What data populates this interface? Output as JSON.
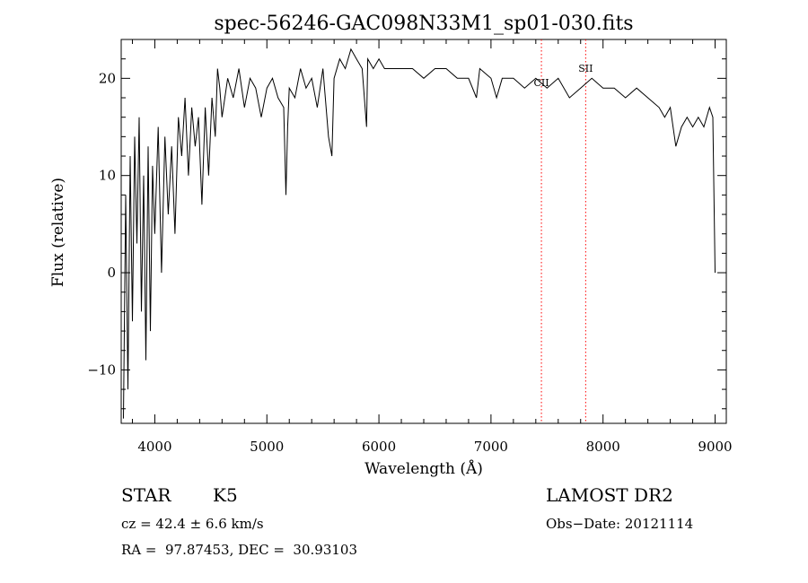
{
  "chart_data": {
    "type": "line",
    "title": "spec-56246-GAC098N33M1_sp01-030.fits",
    "xlabel": "Wavelength (Å)",
    "ylabel": "Flux (relative)",
    "xlim": [
      3700,
      9100
    ],
    "ylim": [
      -15.5,
      24
    ],
    "xticks": [
      4000,
      5000,
      6000,
      7000,
      8000,
      9000
    ],
    "xtick_labels": [
      "4000",
      "5000",
      "6000",
      "7000",
      "8000",
      "9000"
    ],
    "yticks": [
      -10,
      0,
      10,
      20
    ],
    "ytick_labels": [
      "−10",
      "0",
      "10",
      "20"
    ],
    "grid": false,
    "series": [
      {
        "color": "#000000",
        "x": [
          3720,
          3740,
          3760,
          3780,
          3800,
          3820,
          3840,
          3860,
          3880,
          3900,
          3920,
          3940,
          3960,
          3980,
          4000,
          4030,
          4060,
          4090,
          4120,
          4150,
          4180,
          4210,
          4240,
          4270,
          4300,
          4330,
          4360,
          4390,
          4420,
          4450,
          4480,
          4510,
          4540,
          4560,
          4580,
          4600,
          4650,
          4700,
          4750,
          4800,
          4850,
          4900,
          4950,
          5000,
          5050,
          5100,
          5150,
          5170,
          5185,
          5200,
          5250,
          5300,
          5350,
          5400,
          5450,
          5500,
          5550,
          5580,
          5600,
          5650,
          5700,
          5750,
          5800,
          5850,
          5890,
          5900,
          5950,
          6000,
          6050,
          6100,
          6200,
          6300,
          6400,
          6500,
          6600,
          6700,
          6800,
          6870,
          6900,
          7000,
          7050,
          7100,
          7200,
          7300,
          7400,
          7500,
          7600,
          7700,
          7800,
          7900,
          8000,
          8100,
          8200,
          8300,
          8400,
          8500,
          8550,
          8600,
          8650,
          8700,
          8750,
          8800,
          8850,
          8900,
          8950,
          8980,
          9000
        ],
        "y": [
          -15,
          8,
          -12,
          12,
          -5,
          14,
          3,
          16,
          -4,
          10,
          -9,
          13,
          -6,
          11,
          4,
          15,
          0,
          14,
          6,
          13,
          4,
          16,
          12,
          18,
          10,
          17,
          13,
          16,
          7,
          17,
          10,
          18,
          14,
          21,
          19,
          16,
          20,
          18,
          21,
          17,
          20,
          19,
          16,
          19,
          20,
          18,
          17,
          8,
          15,
          19,
          18,
          21,
          19,
          20,
          17,
          21,
          14,
          12,
          20,
          22,
          21,
          23,
          22,
          21,
          15,
          22,
          21,
          22,
          21,
          21,
          21,
          21,
          20,
          21,
          21,
          20,
          20,
          18,
          21,
          20,
          18,
          20,
          20,
          19,
          20,
          19,
          20,
          18,
          19,
          20,
          19,
          19,
          18,
          19,
          18,
          17,
          16,
          17,
          13,
          15,
          16,
          15,
          16,
          15,
          17,
          16,
          0
        ]
      }
    ],
    "lines": [
      {
        "x": 7450,
        "label": "CII",
        "color": "#ff0000"
      },
      {
        "x": 7845,
        "label": "SII",
        "color": "#ff0000"
      }
    ]
  },
  "info": {
    "class": "STAR",
    "subclass": "K5",
    "survey": "LAMOST DR2",
    "redshift": "cz = 42.4 ± 6.6 km/s",
    "obs_date": "Obs−Date: 20121114",
    "coords": "RA =  97.87453, DEC =  30.93103"
  }
}
